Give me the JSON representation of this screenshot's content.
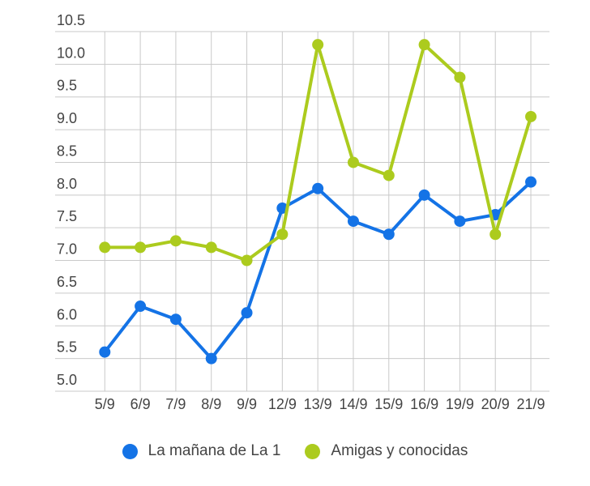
{
  "chart_data": {
    "type": "line",
    "title": "",
    "xlabel": "",
    "ylabel": "",
    "categories": [
      "5/9",
      "6/9",
      "7/9",
      "8/9",
      "9/9",
      "12/9",
      "13/9",
      "14/9",
      "15/9",
      "16/9",
      "19/9",
      "20/9",
      "21/9"
    ],
    "series": [
      {
        "name": "La mañana de La 1",
        "color": "#1473e6",
        "values": [
          5.6,
          6.3,
          6.1,
          5.5,
          6.2,
          7.8,
          8.1,
          7.6,
          7.4,
          8.0,
          7.6,
          7.7,
          8.2
        ]
      },
      {
        "name": "Amigas y conocidas",
        "color": "#accb1e",
        "values": [
          7.2,
          7.2,
          7.3,
          7.2,
          7.0,
          7.4,
          10.3,
          8.5,
          8.3,
          10.3,
          9.8,
          7.4,
          9.2
        ]
      }
    ],
    "ylim": [
      5.0,
      10.5
    ],
    "ytick_step": 0.5,
    "ytick_labels": [
      "5.0",
      "5.5",
      "6.0",
      "6.5",
      "7.0",
      "7.5",
      "8.0",
      "8.5",
      "9.0",
      "9.5",
      "10.0",
      "10.5"
    ],
    "grid": "both",
    "legend_position": "bottom",
    "marker": "circle",
    "colors": {
      "grid": "#c9c9c9",
      "axis_text": "#444444",
      "background": "#ffffff"
    }
  }
}
